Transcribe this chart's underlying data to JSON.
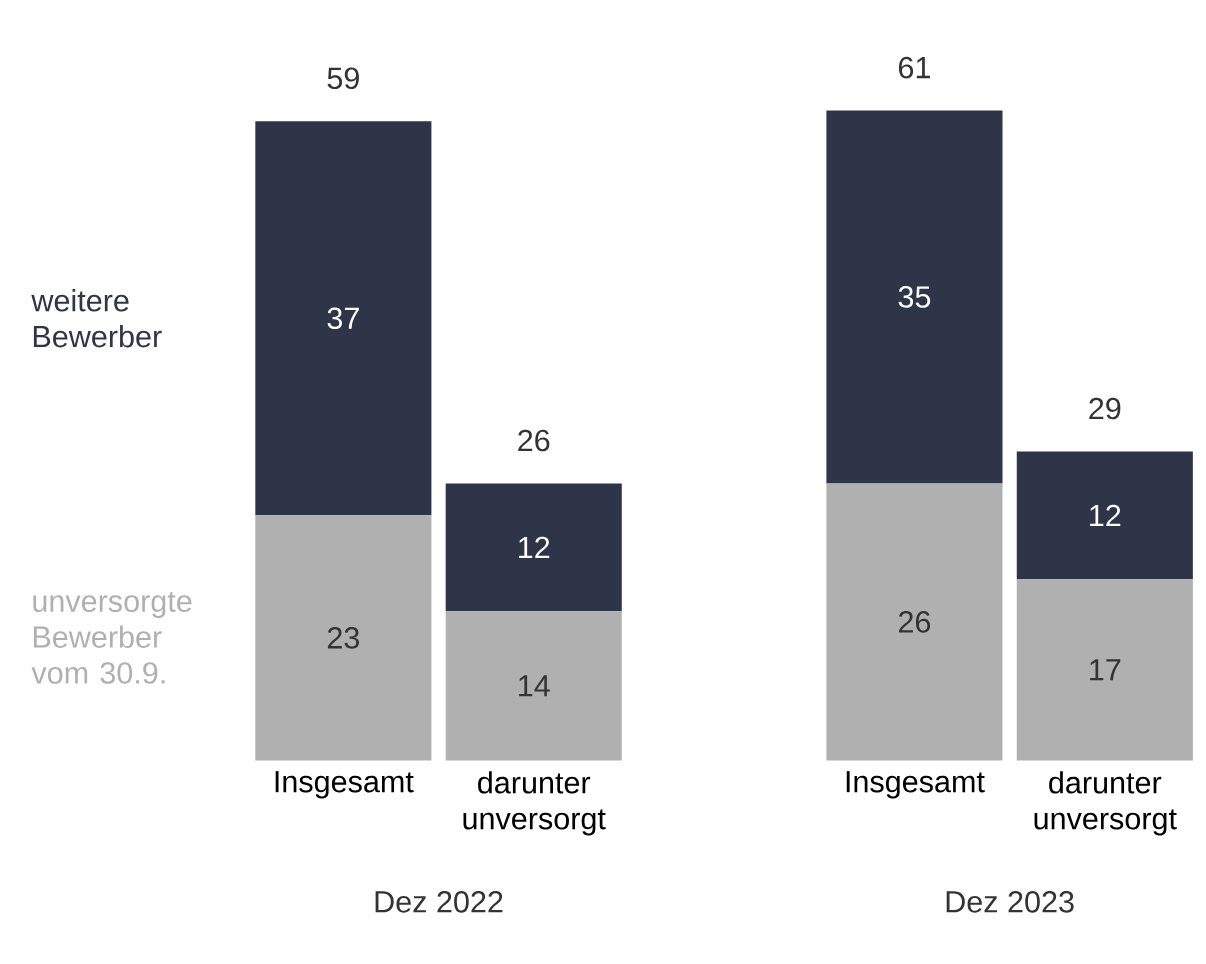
{
  "chart_data": {
    "type": "bar",
    "stacked": true,
    "categories": [
      "Insgesamt",
      "darunter unversorgt",
      "Insgesamt",
      "darunter unversorgt"
    ],
    "series": [
      {
        "name": "unversorgte Bewerber vom 30.9.",
        "color": "#b0b0b0",
        "values": [
          23,
          14,
          26,
          17
        ]
      },
      {
        "name": "weitere Bewerber",
        "color": "#2e3549",
        "values": [
          37,
          12,
          35,
          12
        ]
      }
    ],
    "totals": [
      "59",
      "26",
      "61",
      "29"
    ],
    "data_labels": true,
    "legend": "left",
    "annotations": [
      "Dez 2022",
      "Dez 2023"
    ]
  }
}
